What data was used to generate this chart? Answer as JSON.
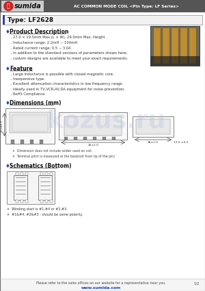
{
  "header_bg": "#555555",
  "header_text": "AC COMMON MODE COIL <Pin Type: LF Series>",
  "type_label": "Type: LF2628",
  "bullet_color": "#334499",
  "product_desc_title": "Product Description",
  "product_desc_bullets": [
    "27.0 × 19.5mm Max.(L × W), 29.0mm Max. Height .",
    "Inductance range: 2.2mH ~ 100mH",
    "Rated current range: 0.5 ~ 3.0A",
    "In addition to the standard versions of parameters shown here,",
    "custom designs are available to meet your exact requirements."
  ],
  "feature_title": "Feature",
  "feature_bullets": [
    "Large inductance is possible with closed magnetic core.",
    "Inexpensive type.",
    "Excellent attenuation characteristics in low frequency range.",
    "Ideally used in TV,VCR,AV,DA equipment for noise prevention.",
    "RoHS Compliance"
  ],
  "dimensions_title": "Dimensions (mm)",
  "schematics_title": "Schematics (Bottom)",
  "schematic_notes": [
    "✳  Winding start is #1,#4 or #2,#3.",
    "✳  #1&#4, #2&#3 : should be same polarity."
  ],
  "footer_text": "Please refer to the sales offices on our website for a representative near you.",
  "footer_url": "www.sumida.com",
  "page_num": "1/2",
  "watermark": "kozus.ru",
  "bg_color": "#ffffff",
  "dim_note1": "Dimension does not include solder used on coil.",
  "dim_note2": "Terminal pitch is measured at the base(not from tip of the pin)"
}
